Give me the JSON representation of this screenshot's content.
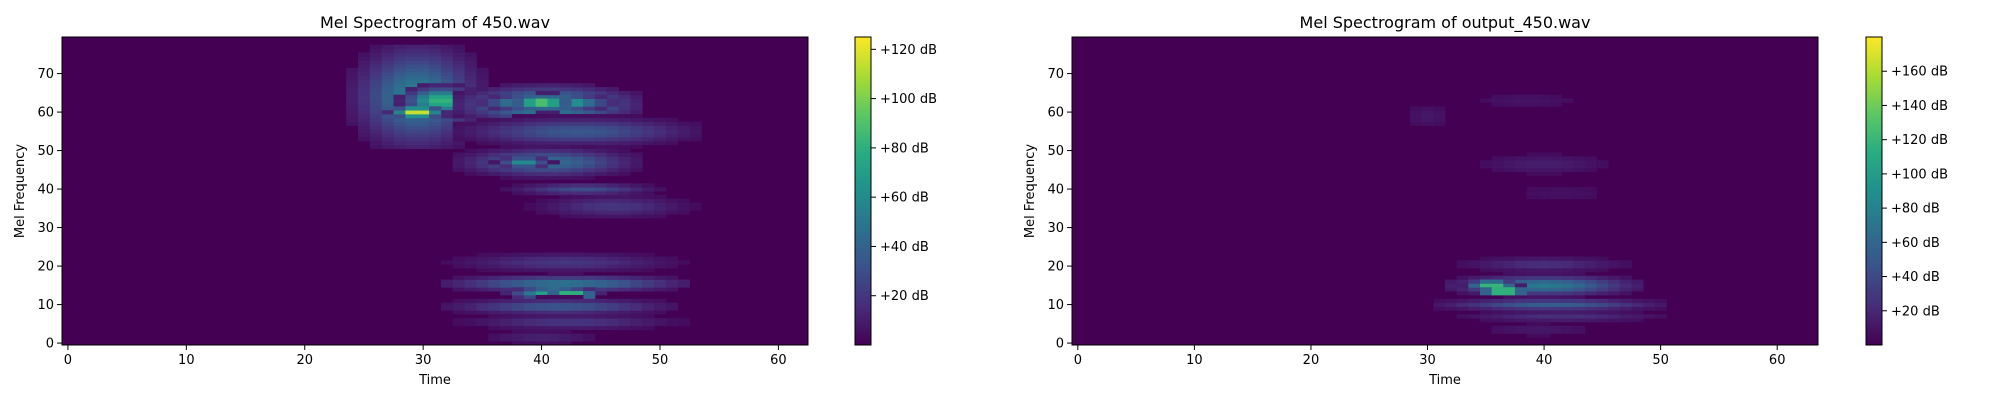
{
  "chart_data": [
    {
      "type": "heatmap",
      "title": "Mel Spectrogram of 450.wav",
      "xlabel": "Time",
      "ylabel": "Mel Frequency",
      "xlim": [
        -0.5,
        62.5
      ],
      "ylim": [
        -0.5,
        79.5
      ],
      "x_ticks": [
        0,
        10,
        20,
        30,
        40,
        50,
        60
      ],
      "y_ticks": [
        0,
        10,
        20,
        30,
        40,
        50,
        60,
        70
      ],
      "colormap": "viridis",
      "colorbar": {
        "vmin": 0,
        "vmax": 125,
        "ticks": [
          20,
          40,
          60,
          80,
          100,
          120
        ],
        "tick_labels": [
          "+20 dB",
          "+40 dB",
          "+60 dB",
          "+80 dB",
          "+100 dB",
          "+120 dB"
        ]
      },
      "blobs": [
        {
          "t": [
            25,
            34
          ],
          "f": [
            52,
            76
          ],
          "peak": 55
        },
        {
          "t": [
            29,
            34
          ],
          "f": [
            60,
            66
          ],
          "peak": 85
        },
        {
          "t": [
            28,
            31
          ],
          "f": [
            59,
            61
          ],
          "peak": 125
        },
        {
          "t": [
            34,
            47
          ],
          "f": [
            58,
            66
          ],
          "peak": 65
        },
        {
          "t": [
            36,
            45
          ],
          "f": [
            61,
            64
          ],
          "peak": 95
        },
        {
          "t": [
            38,
            42
          ],
          "f": [
            62,
            63
          ],
          "peak": 125
        },
        {
          "t": [
            34,
            52
          ],
          "f": [
            52,
            58
          ],
          "peak": 35
        },
        {
          "t": [
            34,
            47
          ],
          "f": [
            44,
            50
          ],
          "peak": 45
        },
        {
          "t": [
            37,
            40
          ],
          "f": [
            46,
            48
          ],
          "peak": 65
        },
        {
          "t": [
            38,
            49
          ],
          "f": [
            39,
            41
          ],
          "peak": 30
        },
        {
          "t": [
            40,
            52
          ],
          "f": [
            33,
            38
          ],
          "peak": 20
        },
        {
          "t": [
            33,
            51
          ],
          "f": [
            19,
            23
          ],
          "peak": 20
        },
        {
          "t": [
            33,
            51
          ],
          "f": [
            14,
            17
          ],
          "peak": 50
        },
        {
          "t": [
            38,
            44
          ],
          "f": [
            12,
            14
          ],
          "peak": 80
        },
        {
          "t": [
            41,
            44
          ],
          "f": [
            12,
            13
          ],
          "peak": 125
        },
        {
          "t": [
            33,
            50
          ],
          "f": [
            8,
            11
          ],
          "peak": 35
        },
        {
          "t": [
            34,
            51
          ],
          "f": [
            4,
            7
          ],
          "peak": 20
        },
        {
          "t": [
            35,
            45
          ],
          "f": [
            0,
            3
          ],
          "peak": 12
        }
      ]
    },
    {
      "type": "heatmap",
      "title": "Mel Spectrogram of output_450.wav",
      "xlabel": "Time",
      "ylabel": "Mel Frequency",
      "xlim": [
        -0.5,
        63.5
      ],
      "ylim": [
        -0.5,
        79.5
      ],
      "x_ticks": [
        0,
        10,
        20,
        30,
        40,
        50,
        60
      ],
      "y_ticks": [
        0,
        10,
        20,
        30,
        40,
        50,
        60,
        70
      ],
      "colormap": "viridis",
      "colorbar": {
        "vmin": 0,
        "vmax": 180,
        "ticks": [
          20,
          40,
          60,
          80,
          100,
          120,
          140,
          160
        ],
        "tick_labels": [
          "+20 dB",
          "+40 dB",
          "+60 dB",
          "+80 dB",
          "+100 dB",
          "+120 dB",
          "+140 dB",
          "+160 dB"
        ]
      },
      "blobs": [
        {
          "t": [
            28,
            32
          ],
          "f": [
            56,
            62
          ],
          "peak": 12
        },
        {
          "t": [
            33,
            44
          ],
          "f": [
            61,
            65
          ],
          "peak": 10
        },
        {
          "t": [
            34,
            46
          ],
          "f": [
            44,
            49
          ],
          "peak": 15
        },
        {
          "t": [
            36,
            47
          ],
          "f": [
            36,
            42
          ],
          "peak": 8
        },
        {
          "t": [
            33,
            47
          ],
          "f": [
            19,
            22
          ],
          "peak": 25
        },
        {
          "t": [
            33,
            47
          ],
          "f": [
            13,
            17
          ],
          "peak": 75
        },
        {
          "t": [
            34,
            37
          ],
          "f": [
            14,
            16
          ],
          "peak": 130
        },
        {
          "t": [
            35,
            38
          ],
          "f": [
            13,
            14
          ],
          "peak": 180
        },
        {
          "t": [
            32,
            49
          ],
          "f": [
            9,
            11
          ],
          "peak": 55
        },
        {
          "t": [
            33,
            50
          ],
          "f": [
            6,
            8
          ],
          "peak": 25
        },
        {
          "t": [
            34,
            45
          ],
          "f": [
            2,
            5
          ],
          "peak": 12
        }
      ]
    }
  ]
}
